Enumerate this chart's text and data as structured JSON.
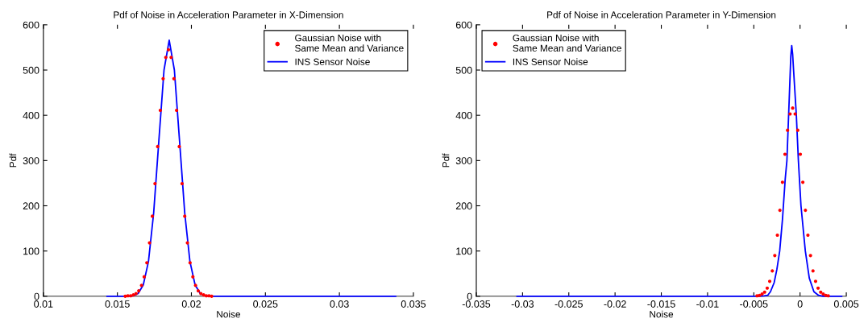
{
  "chart_data": [
    {
      "type": "scatter",
      "title": "Pdf of Noise in Acceleration Parameter in X-Dimension",
      "xlabel": "Noise",
      "ylabel": "Pdf",
      "xlim": [
        0.01,
        0.035
      ],
      "xticks": [
        0.01,
        0.015,
        0.02,
        0.025,
        0.03,
        0.035
      ],
      "ylim": [
        0,
        600
      ],
      "yticks": [
        0,
        100,
        200,
        300,
        400,
        500,
        600
      ],
      "grid": false,
      "legend": "top right",
      "series": [
        {
          "name": "Gaussian Noise with\nSame Mean and Variance",
          "marker": "circle",
          "color": "#ff0000",
          "x": [
            0.01553,
            0.01571,
            0.0159,
            0.01608,
            0.01626,
            0.01644,
            0.01663,
            0.01681,
            0.01699,
            0.01717,
            0.01736,
            0.01754,
            0.01772,
            0.0179,
            0.01809,
            0.01827,
            0.01845,
            0.01863,
            0.01882,
            0.019,
            0.01918,
            0.01937,
            0.01955,
            0.01973,
            0.01991,
            0.0201,
            0.02028,
            0.02046,
            0.02064,
            0.02083,
            0.02101,
            0.02119,
            0.02137
          ],
          "values": [
            0,
            1,
            1,
            3,
            6,
            12,
            24,
            43,
            74,
            118,
            177,
            249,
            331,
            411,
            481,
            528,
            545,
            528,
            481,
            411,
            331,
            249,
            177,
            118,
            74,
            43,
            24,
            12,
            6,
            3,
            1,
            1,
            0
          ]
        },
        {
          "name": "INS Sensor Noise",
          "type": "line",
          "marker": "none",
          "line_style": "solid",
          "color": "#0000ff",
          "x": [
            0.0143,
            0.0157,
            0.01605,
            0.0164,
            0.01675,
            0.0171,
            0.01745,
            0.0178,
            0.01815,
            0.0185,
            0.01885,
            0.0192,
            0.01955,
            0.0199,
            0.02025,
            0.0206,
            0.02095,
            0.0213,
            0.0338
          ],
          "values": [
            0,
            0,
            1,
            6,
            25,
            77,
            184,
            343,
            500,
            566,
            500,
            343,
            184,
            77,
            25,
            6,
            1,
            0,
            0
          ]
        }
      ]
    },
    {
      "type": "scatter",
      "title": "Pdf of Noise in Acceleration Parameter in Y-Dimension",
      "xlabel": "Noise",
      "ylabel": "Pdf",
      "xlim": [
        -0.035,
        0.005
      ],
      "xticks": [
        -0.035,
        -0.03,
        -0.025,
        -0.02,
        -0.015,
        -0.01,
        -0.005,
        0,
        0.005
      ],
      "ylim": [
        0,
        600
      ],
      "yticks": [
        0,
        100,
        200,
        300,
        400,
        500,
        600
      ],
      "grid": false,
      "legend": "top left",
      "series": [
        {
          "name": "Gaussian Noise with\nSame Mean and Variance",
          "marker": "circle",
          "color": "#ff0000",
          "x": [
            -0.00465,
            -0.00438,
            -0.0041,
            -0.00383,
            -0.00355,
            -0.00328,
            -0.003,
            -0.00273,
            -0.00245,
            -0.00218,
            -0.0019,
            -0.00163,
            -0.00135,
            -0.00108,
            -0.0008,
            -0.00053,
            -0.00025,
            3e-05,
            0.0003,
            0.00058,
            0.00085,
            0.00113,
            0.0014,
            0.00168,
            0.00195,
            0.00223,
            0.0025,
            0.00278,
            0.00305
          ],
          "values": [
            1,
            2,
            5,
            9,
            18,
            33,
            56,
            90,
            135,
            190,
            252,
            314,
            367,
            403,
            416,
            403,
            367,
            314,
            252,
            190,
            135,
            90,
            56,
            33,
            18,
            9,
            5,
            2,
            1
          ]
        },
        {
          "name": "INS Sensor Noise",
          "type": "line",
          "marker": "none",
          "line_style": "solid",
          "color": "#0000ff",
          "x": [
            -0.0306,
            -0.0045,
            -0.0039,
            -0.0035,
            -0.0032,
            -0.0028,
            -0.0025,
            -0.0022,
            -0.0019,
            -0.0016,
            -0.00142,
            -0.0012,
            -0.001,
            -0.0009,
            -0.0008,
            -0.0007,
            -0.0004,
            -0.00018,
            0.0001,
            0.00057,
            0.001,
            0.0015,
            0.002,
            0.0025,
            0.0045
          ],
          "values": [
            0,
            0,
            1,
            2,
            10,
            30,
            60,
            100,
            170,
            260,
            300,
            420,
            530,
            554,
            535,
            500,
            400,
            300,
            200,
            100,
            40,
            10,
            2,
            0,
            0
          ]
        }
      ]
    }
  ]
}
